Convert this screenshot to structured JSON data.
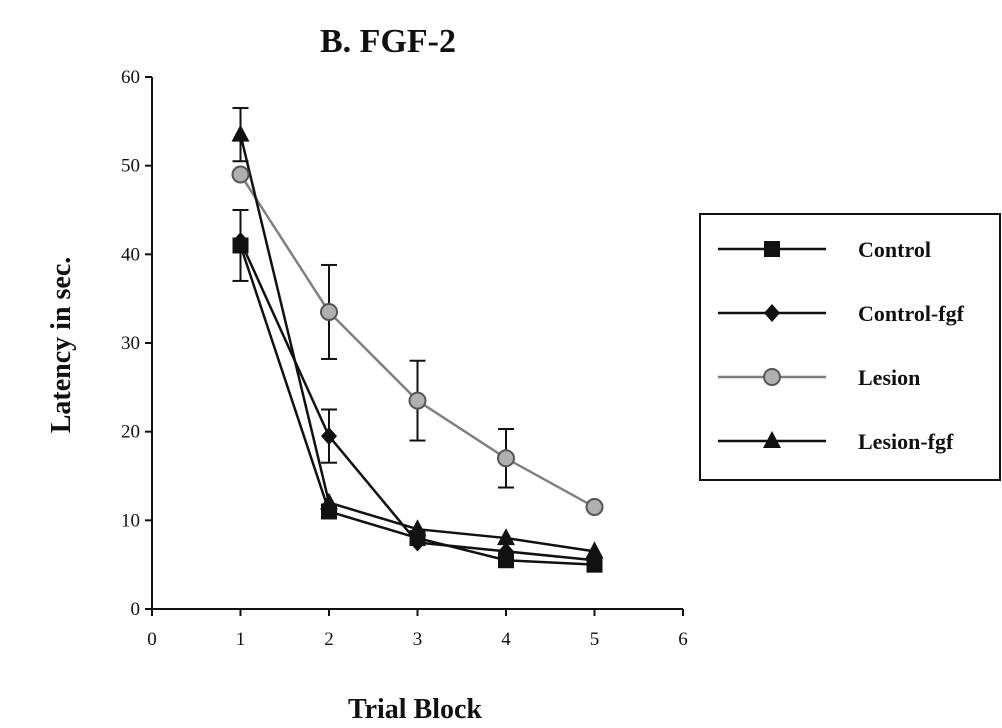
{
  "chart_data": {
    "type": "line",
    "title": "B.  FGF-2",
    "xlabel": "Trial Block",
    "ylabel": "Latency in sec.",
    "xlim": [
      0,
      6
    ],
    "ylim": [
      0,
      60
    ],
    "xticks": [
      "0",
      "1",
      "2",
      "3",
      "4",
      "5",
      "6"
    ],
    "yticks": [
      "0",
      "10",
      "20",
      "30",
      "40",
      "50",
      "60"
    ],
    "grid": false,
    "legend_position": "right",
    "x": [
      1,
      2,
      3,
      4,
      5
    ],
    "series": [
      {
        "name": "Control",
        "marker": "square",
        "color": "#111111",
        "values": [
          41,
          11,
          8,
          5.5,
          5
        ],
        "err": [
          4,
          0,
          0,
          0,
          0
        ]
      },
      {
        "name": "Control-fgf",
        "marker": "diamond",
        "color": "#111111",
        "values": [
          41.5,
          19.5,
          7.5,
          6.5,
          5.5
        ],
        "err": [
          0,
          3,
          0,
          0,
          0
        ]
      },
      {
        "name": "Lesion",
        "marker": "circle",
        "color": "#808080",
        "values": [
          49,
          33.5,
          23.5,
          17,
          11.5
        ],
        "err": [
          0,
          5.3,
          4.5,
          3.3,
          0
        ]
      },
      {
        "name": "Lesion-fgf",
        "marker": "triangle",
        "color": "#111111",
        "values": [
          53.5,
          12,
          9,
          8,
          6.5
        ],
        "err": [
          3,
          0,
          0,
          0,
          0
        ]
      }
    ]
  }
}
